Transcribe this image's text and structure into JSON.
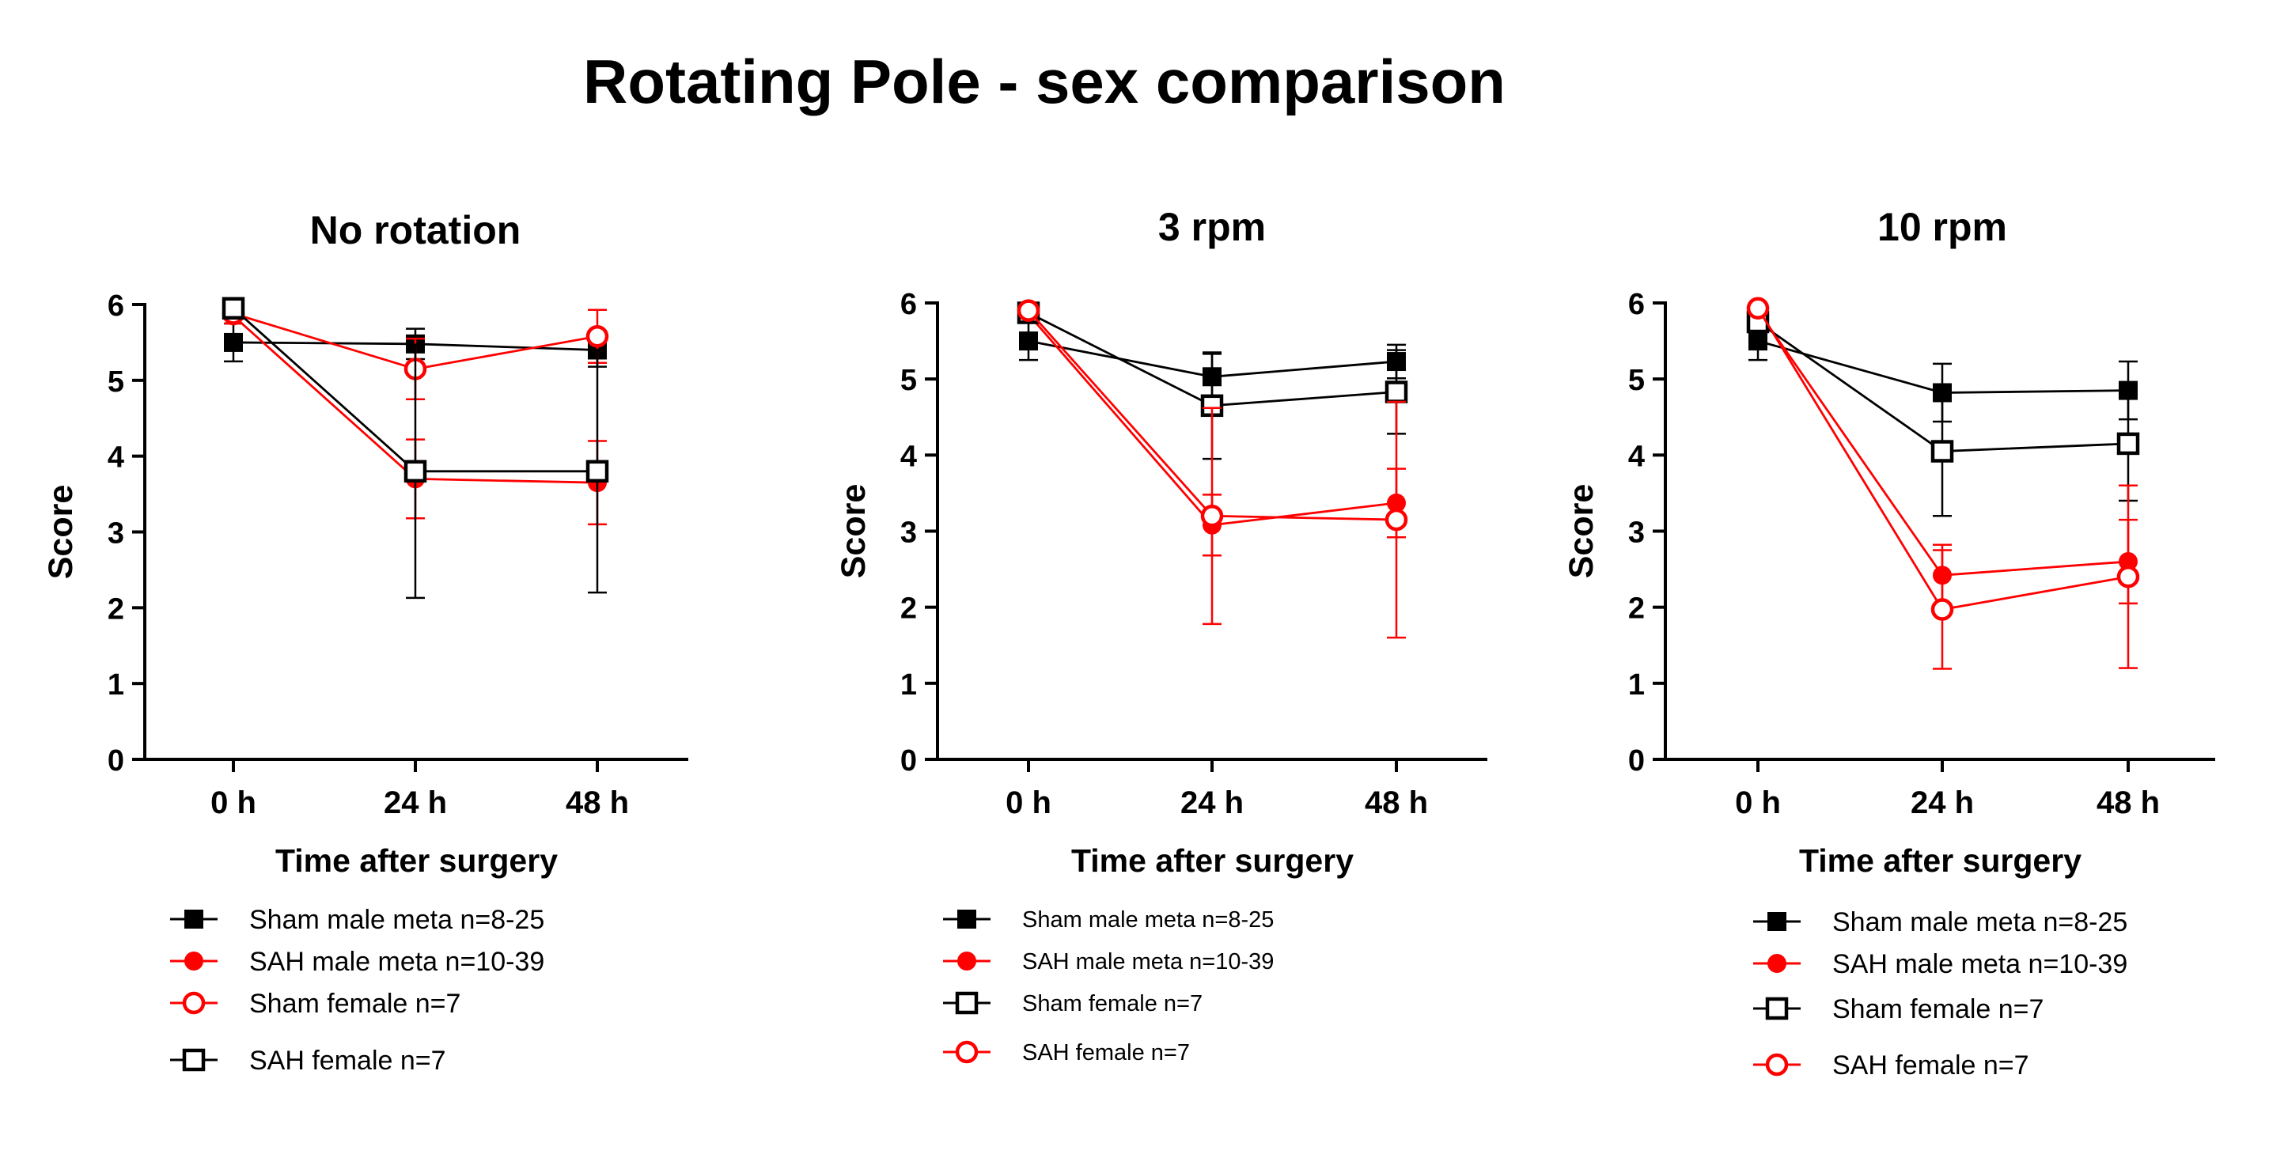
{
  "title": "Rotating Pole  - sex comparison",
  "colors": {
    "black": "#000000",
    "red": "#ff0000"
  },
  "chart_data": [
    {
      "type": "line",
      "title": "No rotation",
      "xlabel": "Time after surgery",
      "ylabel": "Score",
      "categories": [
        "0 h",
        "24 h",
        "48 h"
      ],
      "ylim": [
        0,
        6
      ],
      "yticks": [
        "0",
        "1",
        "2",
        "3",
        "4",
        "5",
        "6"
      ],
      "grid": false,
      "legend_position": "bottom",
      "series": [
        {
          "name": "Sham male meta n=8-25",
          "color": "#000000",
          "marker": "square-filled",
          "values": [
            5.5,
            5.48,
            5.4
          ],
          "err": [
            0.25,
            0.2,
            0.22
          ]
        },
        {
          "name": "SAH male meta n=10-39",
          "color": "#ff0000",
          "marker": "circle-filled",
          "values": [
            5.85,
            3.7,
            3.65
          ],
          "err": [
            0.1,
            0.52,
            0.55
          ]
        },
        {
          "name": "Sham female n=7",
          "color": "#ff0000",
          "marker": "circle-open",
          "values": [
            5.88,
            5.15,
            5.58
          ],
          "err": [
            0.05,
            0.4,
            0.35
          ]
        },
        {
          "name": "SAH female n=7",
          "color": "#000000",
          "marker": "square-open",
          "values": [
            5.95,
            3.8,
            3.8
          ],
          "err": [
            0.05,
            1.67,
            1.6
          ]
        }
      ]
    },
    {
      "type": "line",
      "title": "3 rpm",
      "xlabel": "Time after surgery",
      "ylabel": "Score",
      "categories": [
        "0 h",
        "24 h",
        "48 h"
      ],
      "ylim": [
        0,
        6
      ],
      "yticks": [
        "0",
        "1",
        "2",
        "3",
        "4",
        "5",
        "6"
      ],
      "grid": false,
      "legend_position": "bottom",
      "series": [
        {
          "name": "Sham male meta n=8-25",
          "color": "#000000",
          "marker": "square-filled",
          "values": [
            5.5,
            5.03,
            5.23
          ],
          "err": [
            0.25,
            0.3,
            0.22
          ]
        },
        {
          "name": "SAH male meta n=10-39",
          "color": "#ff0000",
          "marker": "circle-filled",
          "values": [
            5.85,
            3.08,
            3.37
          ],
          "err": [
            0.08,
            0.4,
            0.45
          ]
        },
        {
          "name": "Sham female n=7",
          "color": "#000000",
          "marker": "square-open",
          "values": [
            5.87,
            4.65,
            4.83
          ],
          "err": [
            0.05,
            0.7,
            0.55
          ]
        },
        {
          "name": "SAH female n=7",
          "color": "#ff0000",
          "marker": "circle-open",
          "values": [
            5.9,
            3.2,
            3.15
          ],
          "err": [
            0.05,
            1.42,
            1.55
          ]
        }
      ]
    },
    {
      "type": "line",
      "title": "10 rpm",
      "xlabel": "Time after surgery",
      "ylabel": "Score",
      "categories": [
        "0 h",
        "24 h",
        "48 h"
      ],
      "ylim": [
        0,
        6
      ],
      "yticks": [
        "0",
        "1",
        "2",
        "3",
        "4",
        "5",
        "6"
      ],
      "grid": false,
      "legend_position": "bottom",
      "series": [
        {
          "name": "Sham male meta n=8-25",
          "color": "#000000",
          "marker": "square-filled",
          "values": [
            5.5,
            4.82,
            4.85
          ],
          "err": [
            0.25,
            0.38,
            0.38
          ]
        },
        {
          "name": "SAH male meta n=10-39",
          "color": "#ff0000",
          "marker": "circle-filled",
          "values": [
            5.9,
            2.42,
            2.6
          ],
          "err": [
            0.08,
            0.4,
            0.55
          ]
        },
        {
          "name": "Sham female n=7",
          "color": "#000000",
          "marker": "square-open",
          "values": [
            5.75,
            4.05,
            4.15
          ],
          "err": [
            0.05,
            0.85,
            0.75
          ]
        },
        {
          "name": "SAH female n=7",
          "color": "#ff0000",
          "marker": "circle-open",
          "values": [
            5.93,
            1.97,
            2.4
          ],
          "err": [
            0.05,
            0.78,
            1.2
          ]
        }
      ]
    }
  ]
}
